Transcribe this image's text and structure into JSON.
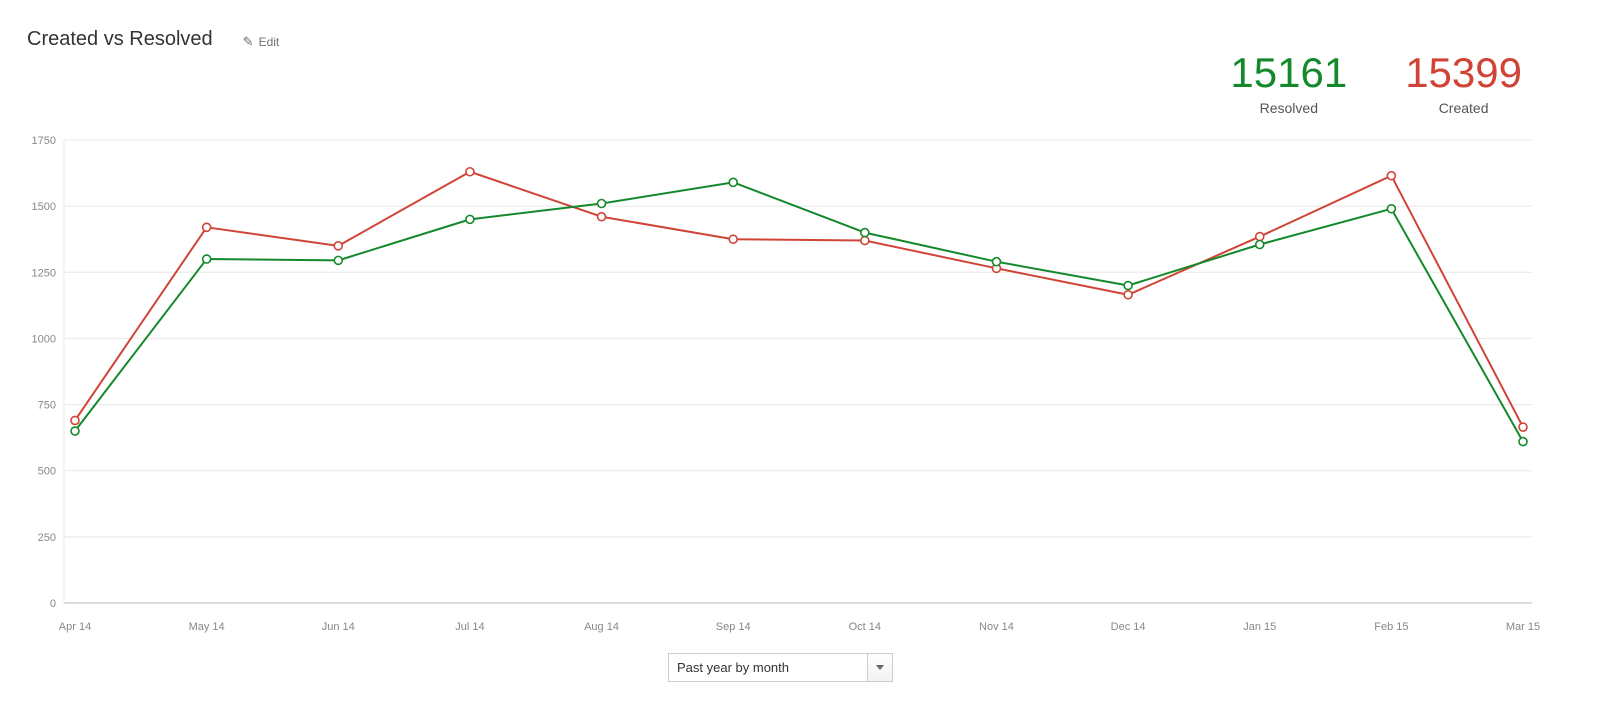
{
  "header": {
    "title": "Created vs Resolved",
    "edit_label": "Edit"
  },
  "totals": {
    "resolved": {
      "value": "15161",
      "label": "Resolved",
      "color": "#14892c"
    },
    "created": {
      "value": "15399",
      "label": "Created",
      "color": "#d04437"
    }
  },
  "period_select": {
    "value": "Past year by month"
  },
  "chart_data": {
    "type": "line",
    "title": "Created vs Resolved",
    "categories": [
      "Apr 14",
      "May 14",
      "Jun 14",
      "Jul 14",
      "Aug 14",
      "Sep 14",
      "Oct 14",
      "Nov 14",
      "Dec 14",
      "Jan 15",
      "Feb 15",
      "Mar 15"
    ],
    "series": [
      {
        "name": "Created",
        "color": "#d04437",
        "values": [
          690,
          1420,
          1350,
          1630,
          1460,
          1375,
          1370,
          1265,
          1165,
          1385,
          1615,
          665
        ]
      },
      {
        "name": "Resolved",
        "color": "#14892c",
        "values": [
          650,
          1300,
          1295,
          1450,
          1510,
          1590,
          1400,
          1290,
          1200,
          1355,
          1490,
          610
        ]
      }
    ],
    "ylim": [
      0,
      1750
    ],
    "yticks": [
      0,
      250,
      500,
      750,
      1000,
      1250,
      1500,
      1750
    ],
    "grid": true,
    "legend_position": "none",
    "marker": "open-circle"
  }
}
